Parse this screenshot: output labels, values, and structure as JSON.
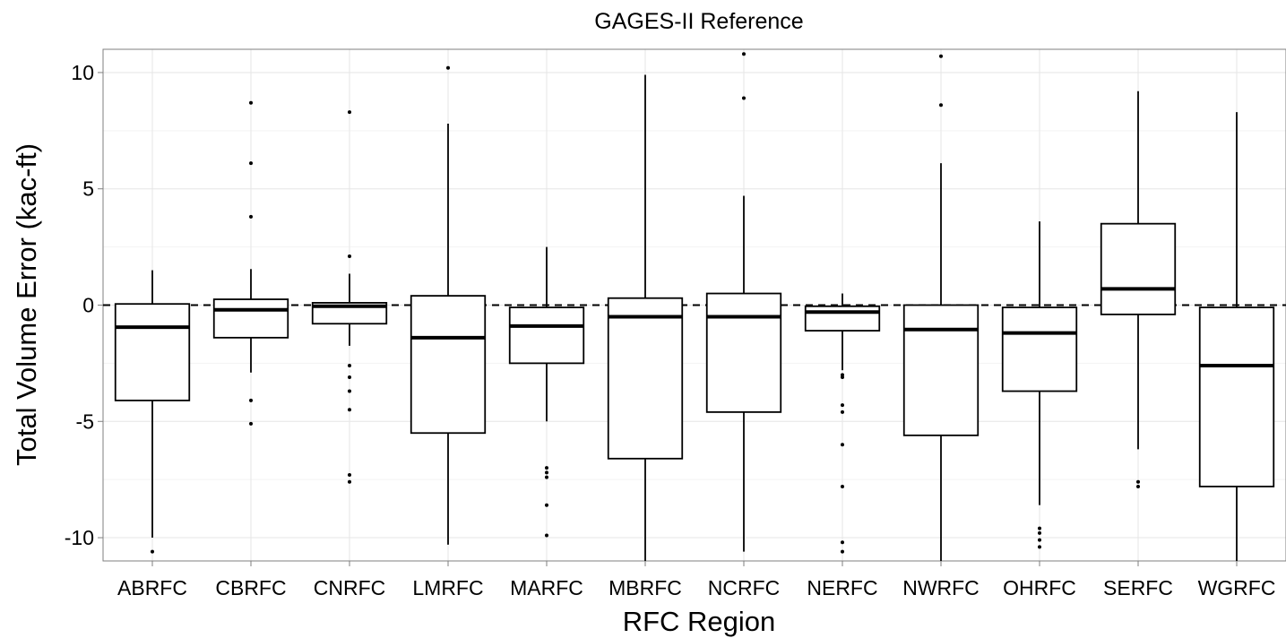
{
  "chart_data": {
    "type": "box",
    "title": "GAGES-II Reference",
    "xlabel": "RFC Region",
    "ylabel": "Total Volume Error (kac-ft)",
    "ylim": [
      -11,
      11
    ],
    "y_ticks": [
      10,
      5,
      0,
      -5,
      -10
    ],
    "y_tick_labels": [
      "10",
      "5",
      "0",
      "-5",
      "-10"
    ],
    "reference_line": 0,
    "grid": true,
    "categories": [
      "ABRFC",
      "CBRFC",
      "CNRFC",
      "LMRFC",
      "MARFC",
      "MBRFC",
      "NCRFC",
      "NERFC",
      "NWRFC",
      "OHRFC",
      "SERFC",
      "WGRFC"
    ],
    "boxes": [
      {
        "q1": -4.1,
        "median": -0.95,
        "q3": 0.05,
        "whisker_low": -10.0,
        "whisker_high": 1.5,
        "outliers": [
          -10.6
        ]
      },
      {
        "q1": -1.4,
        "median": -0.2,
        "q3": 0.25,
        "whisker_low": -2.9,
        "whisker_high": 1.55,
        "outliers": [
          8.7,
          6.1,
          3.8,
          -4.1,
          -5.1
        ]
      },
      {
        "q1": -0.8,
        "median": -0.05,
        "q3": 0.1,
        "whisker_low": -1.75,
        "whisker_high": 1.35,
        "outliers": [
          8.3,
          2.1,
          -2.6,
          -3.1,
          -3.7,
          -4.5,
          -7.3,
          -7.6
        ]
      },
      {
        "q1": -5.5,
        "median": -1.4,
        "q3": 0.4,
        "whisker_low": -10.3,
        "whisker_high": 7.8,
        "outliers": [
          10.2
        ]
      },
      {
        "q1": -2.5,
        "median": -0.9,
        "q3": -0.1,
        "whisker_low": -5.0,
        "whisker_high": 2.5,
        "outliers": [
          -7.0,
          -7.2,
          -7.4,
          -8.6,
          -9.9
        ]
      },
      {
        "q1": -6.6,
        "median": -0.5,
        "q3": 0.3,
        "whisker_low": -11.0,
        "whisker_high": 9.9,
        "outliers": []
      },
      {
        "q1": -4.6,
        "median": -0.5,
        "q3": 0.5,
        "whisker_low": -10.6,
        "whisker_high": 4.7,
        "outliers": [
          10.8,
          8.9
        ]
      },
      {
        "q1": -1.1,
        "median": -0.3,
        "q3": -0.05,
        "whisker_low": -2.8,
        "whisker_high": 0.5,
        "outliers": [
          -3.0,
          -3.1,
          -4.3,
          -4.6,
          -6.0,
          -7.8,
          -10.2,
          -10.6
        ]
      },
      {
        "q1": -5.6,
        "median": -1.05,
        "q3": 0.0,
        "whisker_low": -11.0,
        "whisker_high": 6.1,
        "outliers": [
          10.7,
          8.6
        ]
      },
      {
        "q1": -3.7,
        "median": -1.2,
        "q3": -0.1,
        "whisker_low": -8.6,
        "whisker_high": 3.6,
        "outliers": [
          -9.6,
          -9.8,
          -10.1,
          -10.4
        ]
      },
      {
        "q1": -0.4,
        "median": 0.7,
        "q3": 3.5,
        "whisker_low": -6.2,
        "whisker_high": 9.2,
        "outliers": [
          -7.6,
          -7.8
        ]
      },
      {
        "q1": -7.8,
        "median": -2.6,
        "q3": -0.1,
        "whisker_low": -11.0,
        "whisker_high": 8.3,
        "outliers": []
      }
    ]
  }
}
